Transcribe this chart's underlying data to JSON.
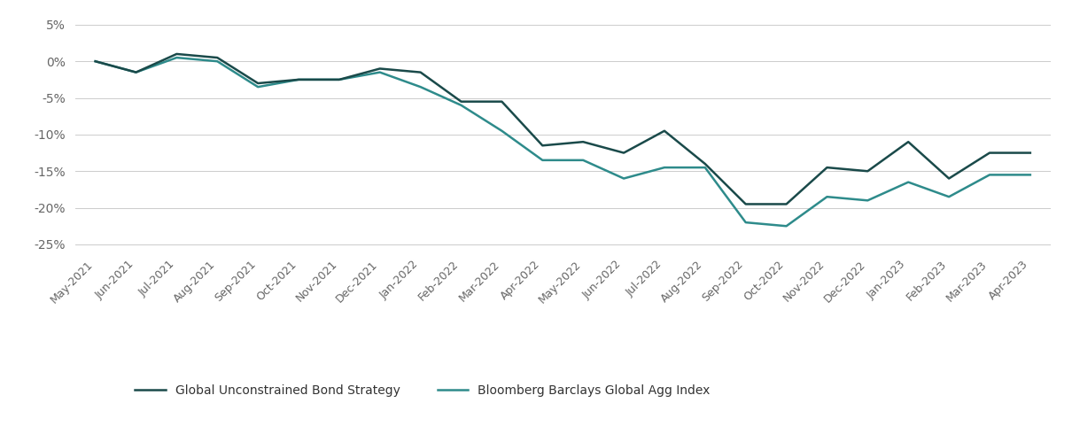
{
  "labels": [
    "May-2021",
    "Jun-2021",
    "Jul-2021",
    "Aug-2021",
    "Sep-2021",
    "Oct-2021",
    "Nov-2021",
    "Dec-2021",
    "Jan-2022",
    "Feb-2022",
    "Mar-2022",
    "Apr-2022",
    "May-2022",
    "Jun-2022",
    "Jul-2022",
    "Aug-2022",
    "Sep-2022",
    "Oct-2022",
    "Nov-2022",
    "Dec-2022",
    "Jan-2023",
    "Feb-2023",
    "Mar-2023",
    "Apr-2023"
  ],
  "series1_name": "Global Unconstrained Bond Strategy",
  "series1_color": "#1a4a4a",
  "series1_values": [
    0.0,
    -1.5,
    1.0,
    0.5,
    -3.0,
    -2.5,
    -2.5,
    -1.0,
    -1.5,
    -5.5,
    -5.5,
    -11.5,
    -11.0,
    -12.5,
    -9.5,
    -14.0,
    -19.5,
    -19.5,
    -14.5,
    -15.0,
    -11.0,
    -16.0,
    -12.5,
    -12.5
  ],
  "series2_name": "Bloomberg Barclays Global Agg Index",
  "series2_color": "#2e8b8b",
  "series2_values": [
    0.0,
    -1.5,
    0.5,
    0.0,
    -3.5,
    -2.5,
    -2.5,
    -1.5,
    -3.5,
    -6.0,
    -9.5,
    -13.5,
    -13.5,
    -16.0,
    -14.5,
    -14.5,
    -22.0,
    -22.5,
    -18.5,
    -19.0,
    -16.5,
    -18.5,
    -15.5,
    -15.5
  ],
  "ylim": [
    -26,
    6
  ],
  "yticks": [
    5,
    0,
    -5,
    -10,
    -15,
    -20,
    -25
  ],
  "background_color": "#ffffff",
  "grid_color": "#cccccc",
  "legend_fontsize": 10,
  "axis_fontsize": 9,
  "line_width": 1.8
}
